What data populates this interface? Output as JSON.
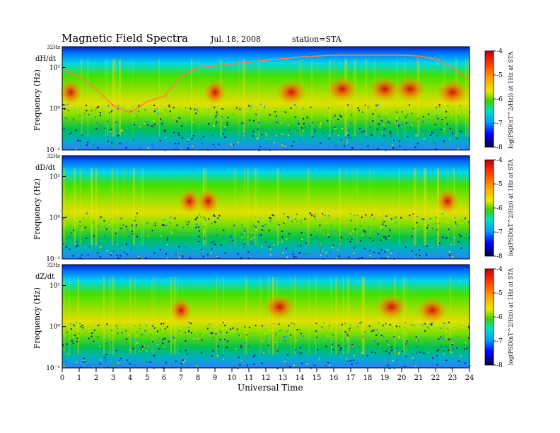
{
  "header": {
    "title": "Magnetic  Field  Spectra",
    "date": "Jul.  18, 2008",
    "station": "station=STA"
  },
  "colors": {
    "scale": [
      "#000060",
      "#0000ff",
      "#00a0ff",
      "#00e0e0",
      "#00d000",
      "#80e000",
      "#e0e000",
      "#ffa000",
      "#ff3000",
      "#c00000",
      "#ffffff"
    ]
  },
  "chart_data": {
    "type": "heatmap",
    "xlabel": "Universal Time",
    "x_ticks": [
      "0",
      "1",
      "2",
      "3",
      "4",
      "5",
      "6",
      "7",
      "8",
      "9",
      "10",
      "11",
      "12",
      "13",
      "14",
      "15",
      "16",
      "17",
      "18",
      "19",
      "20",
      "21",
      "22",
      "23",
      "24"
    ],
    "xlim": [
      0,
      24
    ],
    "colorbar": {
      "label": "log(PSD(nT^2/Hz)) at 1Hz at STA",
      "ticks": [
        "-4",
        "-5",
        "-6",
        "-7",
        "-8"
      ],
      "range": [
        -8,
        -4
      ]
    },
    "panels": [
      {
        "name": "dH/dt",
        "ylabel": "Frequency  (Hz)",
        "y_ticks": [
          "32Hz",
          "10¹",
          "10⁰",
          "10⁻¹"
        ],
        "ylim": [
          0.1,
          32
        ],
        "yscale": "log",
        "curve_hz": [
          [
            0,
            9
          ],
          [
            1,
            6
          ],
          [
            2,
            3
          ],
          [
            3,
            1.2
          ],
          [
            4,
            0.8
          ],
          [
            5,
            1.5
          ],
          [
            6,
            2
          ],
          [
            7,
            6
          ],
          [
            8,
            10
          ],
          [
            9,
            11
          ],
          [
            10,
            12
          ],
          [
            12,
            15
          ],
          [
            14,
            18
          ],
          [
            16,
            20
          ],
          [
            18,
            20
          ],
          [
            20,
            20
          ],
          [
            21,
            19
          ],
          [
            22,
            16
          ],
          [
            23,
            10
          ],
          [
            24,
            5
          ]
        ],
        "bursts": [
          {
            "t": 0.5,
            "f": 2.5,
            "level": -4.8
          },
          {
            "t": 9.0,
            "f": 2.5,
            "level": -5.0
          },
          {
            "t": 13.5,
            "f": 2.5,
            "level": -4.6
          },
          {
            "t": 16.5,
            "f": 3.0,
            "level": -4.4
          },
          {
            "t": 19.0,
            "f": 3.0,
            "level": -4.6
          },
          {
            "t": 20.5,
            "f": 3.0,
            "level": -4.4
          },
          {
            "t": 23.0,
            "f": 2.5,
            "level": -4.6
          }
        ]
      },
      {
        "name": "dD/dt",
        "ylabel": "Frequency  (Hz)",
        "y_ticks": [
          "32Hz",
          "10¹",
          "10⁰",
          "10⁻¹"
        ],
        "ylim": [
          0.1,
          32
        ],
        "yscale": "log",
        "bursts": [
          {
            "t": 7.5,
            "f": 2.5,
            "level": -5.0
          },
          {
            "t": 8.6,
            "f": 2.5,
            "level": -4.7
          },
          {
            "t": 22.7,
            "f": 2.5,
            "level": -4.8
          }
        ]
      },
      {
        "name": "dZ/dt",
        "ylabel": "Frequency  (Hz)",
        "y_ticks": [
          "32Hz",
          "10¹",
          "10⁰",
          "10⁻¹"
        ],
        "ylim": [
          0.1,
          32
        ],
        "yscale": "log",
        "bursts": [
          {
            "t": 7.0,
            "f": 2.5,
            "level": -4.8
          },
          {
            "t": 12.8,
            "f": 3.0,
            "level": -4.4
          },
          {
            "t": 19.4,
            "f": 3.0,
            "level": -4.4
          },
          {
            "t": 21.8,
            "f": 2.5,
            "level": -4.6
          }
        ]
      }
    ]
  }
}
